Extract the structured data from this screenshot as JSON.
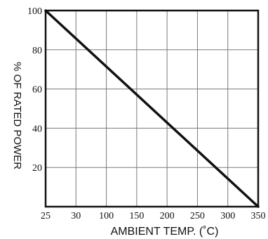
{
  "chart_data": {
    "type": "line",
    "title": "",
    "xlabel": "AMBIENT TEMP. (˚C)",
    "ylabel": "% OF RATED POWER",
    "x_tick_labels": [
      "25",
      "30",
      "100",
      "150",
      "200",
      "250",
      "300",
      "350"
    ],
    "y_tick_labels": [
      "20",
      "40",
      "60",
      "80",
      "100"
    ],
    "y_ticks": [
      20,
      40,
      60,
      80,
      100
    ],
    "ylim": [
      0,
      100
    ],
    "grid": true,
    "legend": "none",
    "series": [
      {
        "x": [
          "25",
          "350"
        ],
        "y": [
          100,
          0
        ]
      }
    ],
    "colors": {
      "line": "#111111",
      "grid": "#7a7a7a",
      "frame": "#111111"
    }
  }
}
